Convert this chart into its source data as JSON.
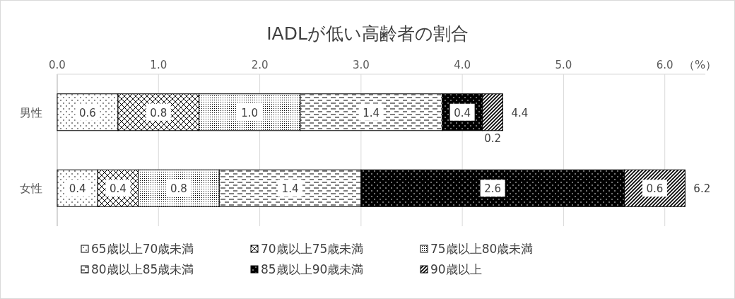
{
  "chart_data": {
    "type": "bar",
    "orientation": "horizontal",
    "stacked": true,
    "title": "IADLが低い高齢者の割合",
    "xlabel": "（%）",
    "categories": [
      "男性",
      "女性"
    ],
    "series": [
      {
        "name": "65歳以上70歳未満",
        "color": "#000000",
        "values": [
          0.6,
          0.4
        ],
        "value_labels": [
          "0.6",
          "0.4"
        ]
      },
      {
        "name": "70歳以上75歳未満",
        "color": "#000000",
        "values": [
          0.8,
          0.4
        ],
        "value_labels": [
          "0.8",
          "0.4"
        ]
      },
      {
        "name": "75歳以上80歳未満",
        "color": "#000000",
        "values": [
          1.0,
          0.8
        ],
        "value_labels": [
          "1.0",
          "0.8"
        ]
      },
      {
        "name": "80歳以上85歳未満",
        "color": "#000000",
        "values": [
          1.4,
          1.4
        ],
        "value_labels": [
          "1.4",
          "1.4"
        ]
      },
      {
        "name": "85歳以上90歳未満",
        "color": "#000000",
        "values": [
          0.4,
          2.6
        ],
        "value_labels": [
          "0.4",
          "2.6"
        ]
      },
      {
        "name": "90歳以上",
        "color": "#000000",
        "values": [
          0.2,
          0.6
        ],
        "value_labels": [
          "0.2",
          "0.6"
        ]
      }
    ],
    "totals": [
      "4.4",
      "6.2"
    ],
    "xlim": [
      0,
      6.4
    ],
    "xticks": [
      {
        "value": 0,
        "label": "0.0"
      },
      {
        "value": 1,
        "label": "1.0"
      },
      {
        "value": 2,
        "label": "2.0"
      },
      {
        "value": 3,
        "label": "3.0"
      },
      {
        "value": 4,
        "label": "4.0"
      },
      {
        "value": 5,
        "label": "5.0"
      },
      {
        "value": 6,
        "label": "6.0"
      }
    ],
    "grid": "x",
    "legend": "bottom"
  }
}
